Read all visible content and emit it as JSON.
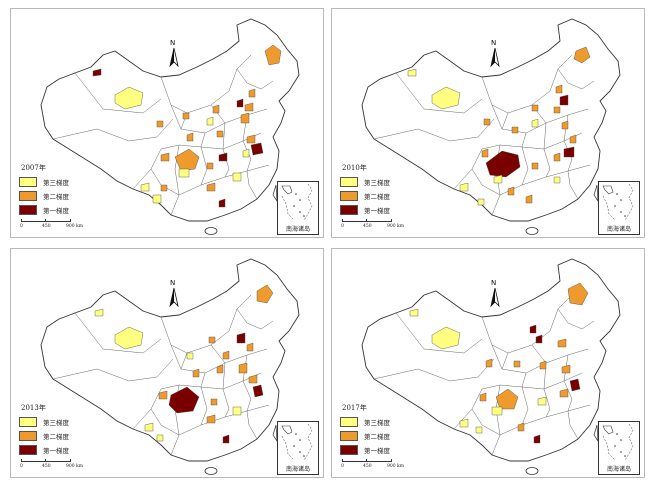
{
  "legend": {
    "tier3_label": "第三梯度",
    "tier2_label": "第二梯度",
    "tier1_label": "第一梯度"
  },
  "colors": {
    "tier3": "#ffff80",
    "tier2": "#ee9a2c",
    "tier1": "#7a0000",
    "border": "#444444",
    "background": "#ffffff"
  },
  "scale": {
    "tick0": "0",
    "tick1": "450",
    "tick2": "900 km"
  },
  "north_label": "N",
  "inset_label": "南海诸岛",
  "panels": [
    {
      "year": "2007年"
    },
    {
      "year": "2010年"
    },
    {
      "year": "2013年"
    },
    {
      "year": "2017年"
    }
  ]
}
